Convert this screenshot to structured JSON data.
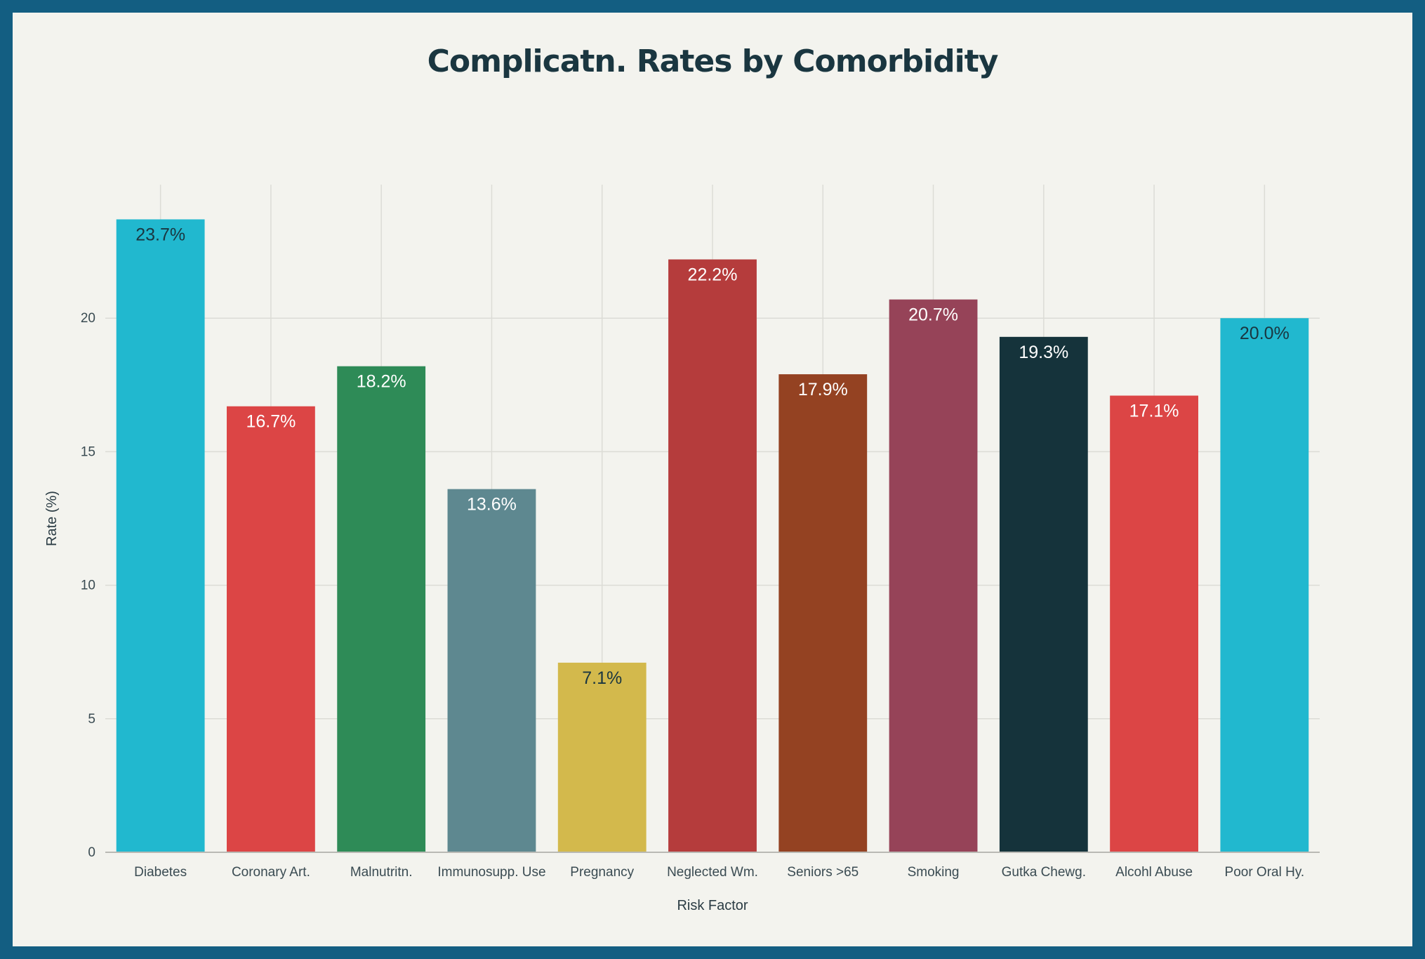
{
  "chart_data": {
    "type": "bar",
    "title": "Complicatn. Rates by Comorbidity",
    "xlabel": "Risk Factor",
    "ylabel": "Rate (%)",
    "ylim": [
      0,
      25
    ],
    "yticks": [
      0,
      5,
      10,
      15,
      20
    ],
    "grid": true,
    "legend": "none",
    "categories": [
      "Diabetes",
      "Coronary Art.",
      "Malnutritn.",
      "Immunosupp. Use",
      "Pregnancy",
      "Neglected Wm.",
      "Seniors >65",
      "Smoking",
      "Gutka Chewg.",
      "Alcohl Abuse",
      "Poor Oral Hy."
    ],
    "values": [
      23.7,
      16.7,
      18.2,
      13.6,
      7.1,
      22.2,
      17.9,
      20.7,
      19.3,
      17.1,
      20.0
    ],
    "data_labels": [
      "23.7%",
      "16.7%",
      "18.2%",
      "13.6%",
      "7.1%",
      "22.2%",
      "17.9%",
      "20.7%",
      "19.3%",
      "17.1%",
      "20.0%"
    ],
    "colors": [
      "#21b8cf",
      "#dc4545",
      "#2e8b57",
      "#5e8890",
      "#d3b94c",
      "#b53c3c",
      "#944222",
      "#964358",
      "#15333b",
      "#dc4545",
      "#21b8cf"
    ],
    "label_colors": [
      "#1a3640",
      "#ffffff",
      "#ffffff",
      "#ffffff",
      "#1a3640",
      "#ffffff",
      "#ffffff",
      "#ffffff",
      "#ffffff",
      "#ffffff",
      "#1a3640"
    ]
  }
}
